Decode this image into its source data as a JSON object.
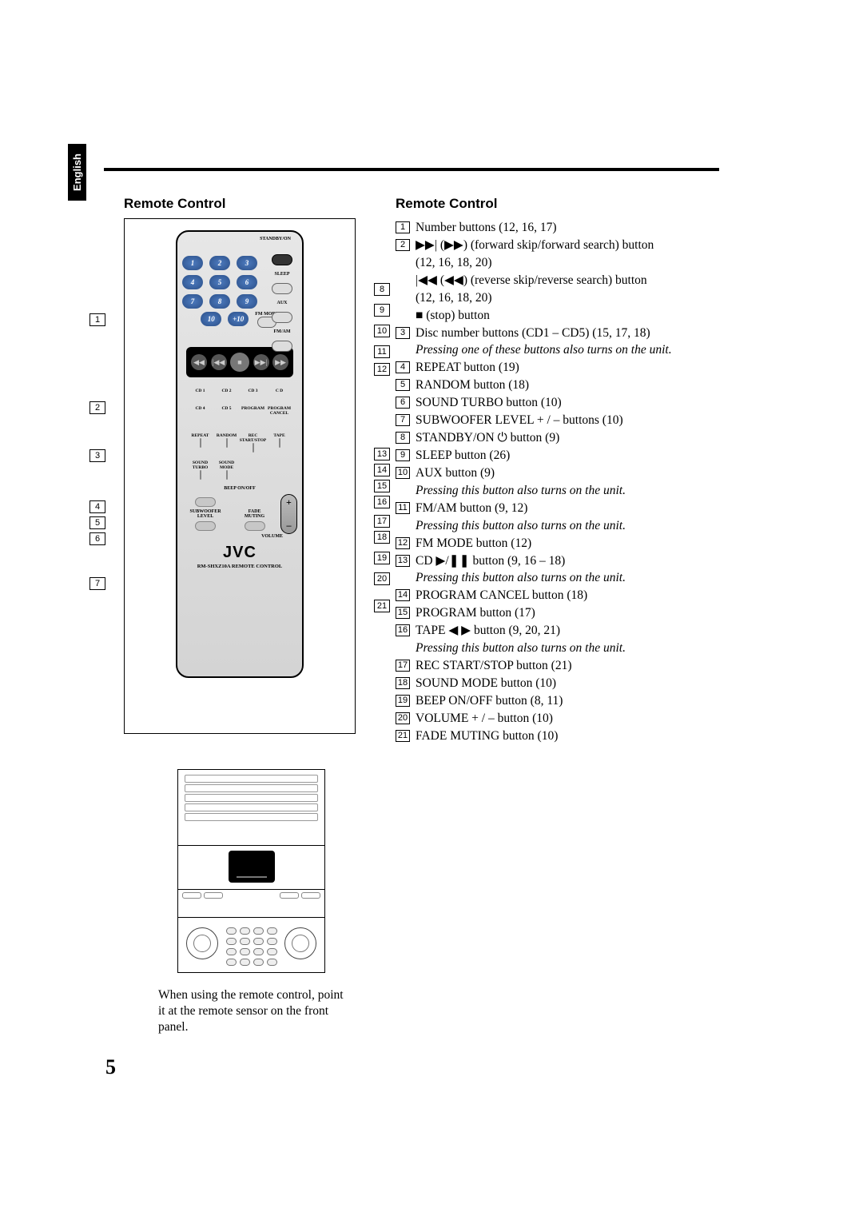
{
  "language_tab": "English",
  "page_number": "5",
  "left": {
    "section_title": "Remote Control",
    "numpad": [
      "1",
      "2",
      "3",
      "4",
      "5",
      "6",
      "7",
      "8",
      "9",
      "10",
      "+10"
    ],
    "side_labels": [
      "STANDBY/ON",
      "SLEEP",
      "AUX",
      "FM/AM"
    ],
    "fm_mode_label": "FM MODE",
    "cd_labels_row1": [
      "CD 1",
      "CD 2",
      "CD 3",
      "C D"
    ],
    "cd_labels_row2": [
      "CD 4",
      "CD 5",
      "PROGRAM",
      "PROGRAM CANCEL"
    ],
    "lower_labels_row1": [
      "REPEAT",
      "RANDOM",
      "REC START/STOP",
      "TAPE"
    ],
    "lower_labels_row2": [
      "SOUND TURBO",
      "SOUND MODE",
      "",
      ""
    ],
    "beep_label": "BEEP ON/OFF",
    "subwoofer_label": "SUBWOOFER LEVEL",
    "fade_label": "FADE MUTING",
    "volume_label": "VOLUME",
    "brand": "JVC",
    "model": "RM-SHXZ10A REMOTE CONTROL",
    "callouts_left": [
      "1",
      "2",
      "3",
      "4",
      "5",
      "6",
      "7"
    ],
    "callouts_right": [
      "8",
      "9",
      "10",
      "11",
      "12",
      "13",
      "14",
      "15",
      "16",
      "17",
      "18",
      "19",
      "20",
      "21"
    ]
  },
  "right": {
    "section_title": "Remote Control",
    "items": [
      {
        "num": "1",
        "lines": [
          {
            "t": "Number buttons (12, 16, 17)"
          }
        ]
      },
      {
        "num": "2",
        "lines": [
          {
            "t": "▶▶| (▶▶) (forward skip/forward search) button"
          },
          {
            "t": "(12, 16, 18, 20)",
            "indent": true
          },
          {
            "t": "|◀◀ (◀◀) (reverse skip/reverse search) button",
            "indent": true
          },
          {
            "t": "(12, 16, 18, 20)",
            "indent": true
          },
          {
            "t": "■ (stop) button",
            "indent": true
          }
        ]
      },
      {
        "num": "3",
        "lines": [
          {
            "t": "Disc number buttons (CD1 – CD5) (15, 17, 18)"
          },
          {
            "t": "Pressing one of these buttons also turns on the unit.",
            "italic": true,
            "indent": true
          }
        ]
      },
      {
        "num": "4",
        "lines": [
          {
            "t": "REPEAT button (19)"
          }
        ]
      },
      {
        "num": "5",
        "lines": [
          {
            "t": "RANDOM button (18)"
          }
        ]
      },
      {
        "num": "6",
        "lines": [
          {
            "t": "SOUND TURBO button (10)"
          }
        ]
      },
      {
        "num": "7",
        "lines": [
          {
            "t": "SUBWOOFER LEVEL + / – buttons (10)"
          }
        ]
      },
      {
        "num": "8",
        "lines": [
          {
            "t": "STANDBY/ON ⏻ button (9)"
          }
        ]
      },
      {
        "num": "9",
        "lines": [
          {
            "t": "SLEEP button (26)"
          }
        ]
      },
      {
        "num": "10",
        "lines": [
          {
            "t": "AUX button (9)"
          },
          {
            "t": "Pressing this button also turns on the unit.",
            "italic": true,
            "indent": true
          }
        ]
      },
      {
        "num": "11",
        "lines": [
          {
            "t": "FM/AM button (9, 12)"
          },
          {
            "t": "Pressing this button also turns on the unit.",
            "italic": true,
            "indent": true
          }
        ]
      },
      {
        "num": "12",
        "lines": [
          {
            "t": "FM MODE button (12)"
          }
        ]
      },
      {
        "num": "13",
        "lines": [
          {
            "t": "CD ▶/❚❚ button (9, 16 – 18)"
          },
          {
            "t": "Pressing this button also turns on the unit.",
            "italic": true,
            "indent": true
          }
        ]
      },
      {
        "num": "14",
        "lines": [
          {
            "t": "PROGRAM CANCEL button (18)"
          }
        ]
      },
      {
        "num": "15",
        "lines": [
          {
            "t": "PROGRAM button (17)"
          }
        ]
      },
      {
        "num": "16",
        "lines": [
          {
            "t": "TAPE ◀ ▶ button (9, 20, 21)"
          },
          {
            "t": "Pressing this button also turns on the unit.",
            "italic": true,
            "indent": true
          }
        ]
      },
      {
        "num": "17",
        "lines": [
          {
            "t": "REC START/STOP button (21)"
          }
        ]
      },
      {
        "num": "18",
        "lines": [
          {
            "t": "SOUND MODE button (10)"
          }
        ]
      },
      {
        "num": "19",
        "lines": [
          {
            "t": "BEEP ON/OFF button (8, 11)"
          }
        ]
      },
      {
        "num": "20",
        "lines": [
          {
            "t": "VOLUME + / –  button (10)"
          }
        ]
      },
      {
        "num": "21",
        "lines": [
          {
            "t": "FADE MUTING button (10)"
          }
        ]
      }
    ]
  },
  "caption": "When using the remote control, point it at the remote sensor on the front panel."
}
